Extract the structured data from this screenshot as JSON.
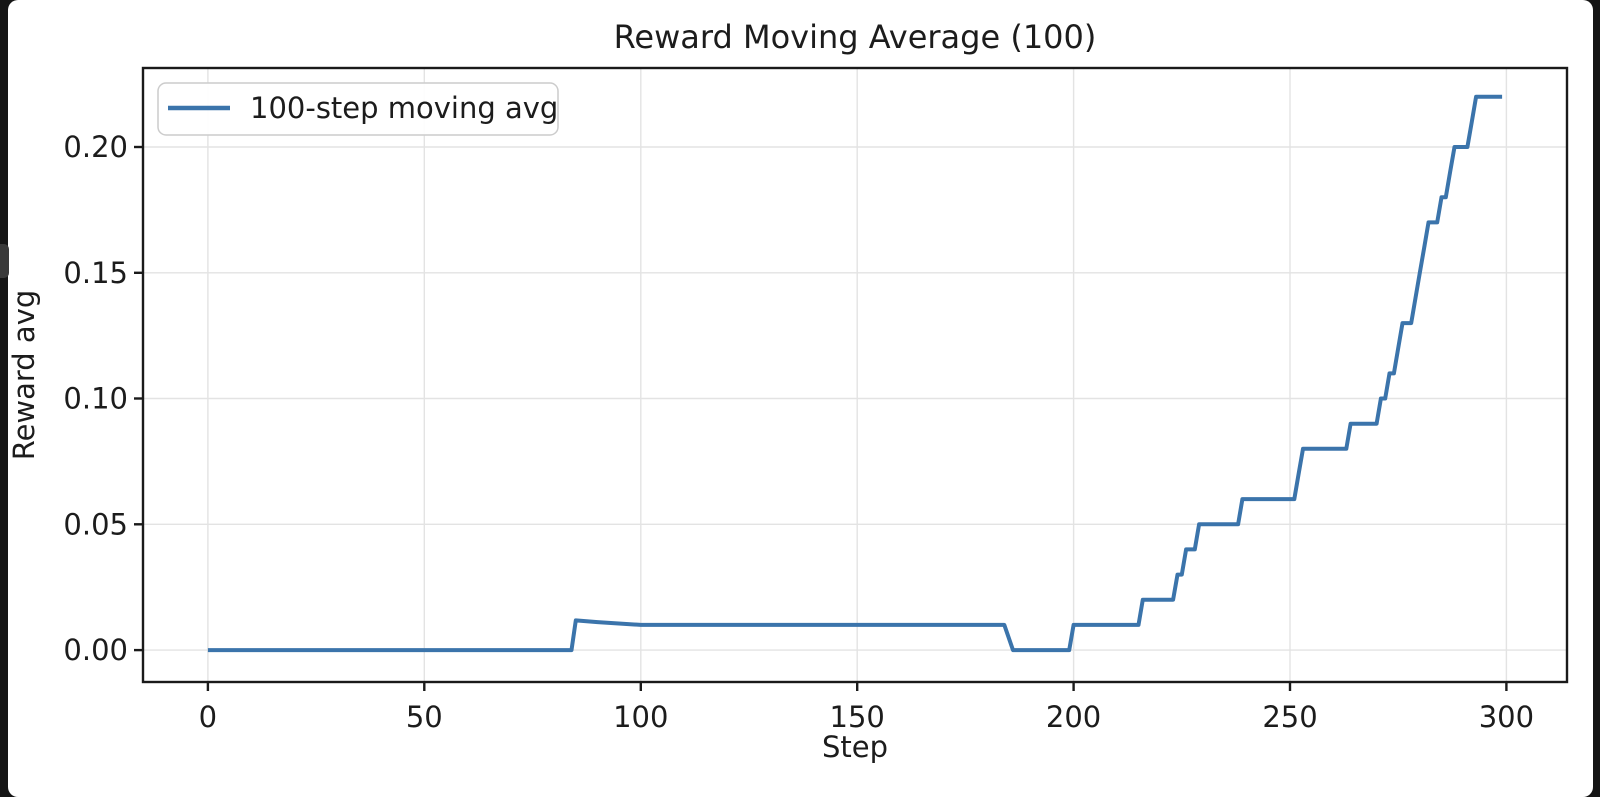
{
  "chart_data": {
    "type": "line",
    "title": "Reward Moving Average (100)",
    "xlabel": "Step",
    "ylabel": "Reward avg",
    "legend": {
      "entries": [
        "100-step moving avg"
      ],
      "position": "upper left"
    },
    "grid": true,
    "xlim": [
      -15,
      314
    ],
    "ylim": [
      -0.0127,
      0.2314
    ],
    "xticks": [
      0,
      50,
      100,
      150,
      200,
      250,
      300
    ],
    "yticks": [
      0.0,
      0.05,
      0.1,
      0.15,
      0.2
    ],
    "colors": {
      "line": "#3b74ab",
      "grid": "#e3e3e3",
      "spine": "#1a1a1a",
      "text": "#1c1c1c",
      "figure_bg": "#ffffff",
      "window_bg": "#151515",
      "legend_border": "#cccccc"
    },
    "series": [
      {
        "name": "100-step moving avg",
        "points": [
          [
            0,
            0.0
          ],
          [
            84,
            0.0
          ],
          [
            85,
            0.0118
          ],
          [
            90,
            0.0111
          ],
          [
            100,
            0.01
          ],
          [
            184,
            0.01
          ],
          [
            186,
            0.0
          ],
          [
            199,
            0.0
          ],
          [
            200,
            0.01
          ],
          [
            215,
            0.01
          ],
          [
            216,
            0.02
          ],
          [
            223,
            0.02
          ],
          [
            224,
            0.03
          ],
          [
            225,
            0.03
          ],
          [
            226,
            0.04
          ],
          [
            228,
            0.04
          ],
          [
            229,
            0.05
          ],
          [
            238,
            0.05
          ],
          [
            239,
            0.06
          ],
          [
            251,
            0.06
          ],
          [
            252,
            0.07
          ],
          [
            253,
            0.08
          ],
          [
            263,
            0.08
          ],
          [
            264,
            0.09
          ],
          [
            270,
            0.09
          ],
          [
            271,
            0.1
          ],
          [
            272,
            0.1
          ],
          [
            273,
            0.11
          ],
          [
            274,
            0.11
          ],
          [
            275,
            0.12
          ],
          [
            276,
            0.13
          ],
          [
            278,
            0.13
          ],
          [
            279,
            0.14
          ],
          [
            280,
            0.15
          ],
          [
            281,
            0.16
          ],
          [
            282,
            0.17
          ],
          [
            284,
            0.17
          ],
          [
            285,
            0.18
          ],
          [
            286,
            0.18
          ],
          [
            287,
            0.19
          ],
          [
            288,
            0.2
          ],
          [
            291,
            0.2
          ],
          [
            292,
            0.21
          ],
          [
            293,
            0.22
          ],
          [
            299,
            0.22
          ]
        ]
      }
    ]
  }
}
